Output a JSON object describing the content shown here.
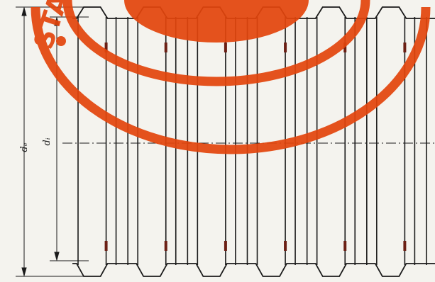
{
  "diagram": {
    "labels": {
      "outer_diameter": "dₑ",
      "inner_diameter": "dᵢ"
    },
    "profile": {
      "corrugation_count": 6,
      "type": "trapezoidal corrugated tube wall, longitudinal section"
    },
    "colors": {
      "line": "#1a1a1a",
      "background": "#f4f3ee",
      "stamp": "#e3450c",
      "accent_mark": "#6b1f14"
    }
  },
  "stamp": {
    "visible_text": "STA"
  }
}
